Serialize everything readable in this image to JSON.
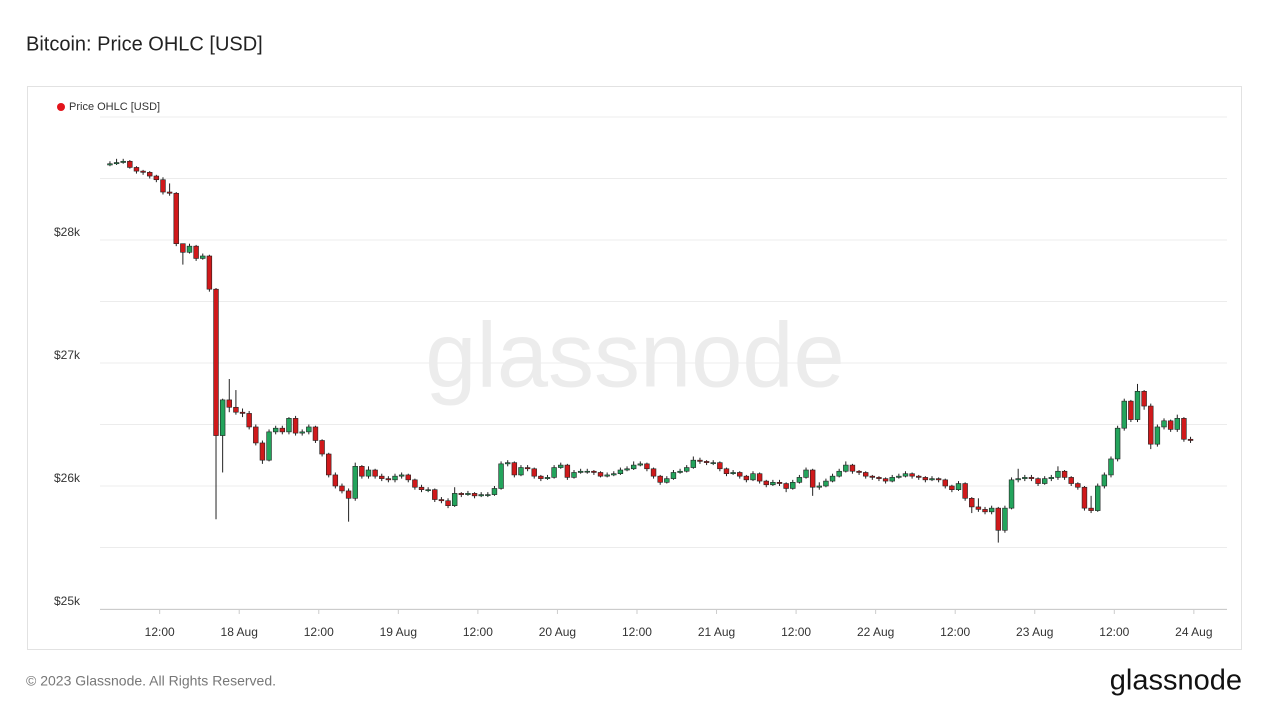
{
  "chart_data": {
    "type": "candlestick",
    "title": "Bitcoin: Price OHLC [USD]",
    "watermark": "glassnode",
    "name": "Price OHLC [USD]",
    "color": "#e3141b",
    "up_color": "#23a45c",
    "down_color": "#d0191b",
    "x": [
      "17 Aug 04:00",
      "17 Aug 05:00",
      "17 Aug 06:00",
      "17 Aug 07:00",
      "17 Aug 08:00",
      "17 Aug 09:00",
      "17 Aug 10:00",
      "17 Aug 11:00",
      "17 Aug 12:00",
      "17 Aug 13:00",
      "17 Aug 14:00",
      "17 Aug 15:00",
      "17 Aug 16:00",
      "17 Aug 17:00",
      "17 Aug 18:00",
      "17 Aug 19:00",
      "17 Aug 20:00",
      "17 Aug 21:00",
      "17 Aug 22:00",
      "17 Aug 23:00",
      "18 Aug 00:00",
      "18 Aug 01:00",
      "18 Aug 02:00",
      "18 Aug 03:00",
      "18 Aug 04:00",
      "18 Aug 05:00",
      "18 Aug 06:00",
      "18 Aug 07:00",
      "18 Aug 08:00",
      "18 Aug 09:00",
      "18 Aug 10:00",
      "18 Aug 11:00",
      "18 Aug 12:00",
      "18 Aug 13:00",
      "18 Aug 14:00",
      "18 Aug 15:00",
      "18 Aug 16:00",
      "18 Aug 17:00",
      "18 Aug 18:00",
      "18 Aug 19:00",
      "18 Aug 20:00",
      "18 Aug 21:00",
      "18 Aug 22:00",
      "18 Aug 23:00",
      "19 Aug 00:00",
      "19 Aug 01:00",
      "19 Aug 02:00",
      "19 Aug 03:00",
      "19 Aug 04:00",
      "19 Aug 05:00",
      "19 Aug 06:00",
      "19 Aug 07:00",
      "19 Aug 08:00",
      "19 Aug 09:00",
      "19 Aug 10:00",
      "19 Aug 11:00",
      "19 Aug 12:00",
      "19 Aug 13:00",
      "19 Aug 14:00",
      "19 Aug 15:00",
      "19 Aug 16:00",
      "19 Aug 17:00",
      "19 Aug 18:00",
      "19 Aug 19:00",
      "19 Aug 20:00",
      "19 Aug 21:00",
      "19 Aug 22:00",
      "19 Aug 23:00",
      "20 Aug 00:00",
      "20 Aug 01:00",
      "20 Aug 02:00",
      "20 Aug 03:00",
      "20 Aug 04:00",
      "20 Aug 05:00",
      "20 Aug 06:00",
      "20 Aug 07:00",
      "20 Aug 08:00",
      "20 Aug 09:00",
      "20 Aug 10:00",
      "20 Aug 11:00",
      "20 Aug 12:00",
      "20 Aug 13:00",
      "20 Aug 14:00",
      "20 Aug 15:00",
      "20 Aug 16:00",
      "20 Aug 17:00",
      "20 Aug 18:00",
      "20 Aug 19:00",
      "20 Aug 20:00",
      "20 Aug 21:00",
      "20 Aug 22:00",
      "20 Aug 23:00",
      "21 Aug 00:00",
      "21 Aug 01:00",
      "21 Aug 02:00",
      "21 Aug 03:00",
      "21 Aug 04:00",
      "21 Aug 05:00",
      "21 Aug 06:00",
      "21 Aug 07:00",
      "21 Aug 08:00",
      "21 Aug 09:00",
      "21 Aug 10:00",
      "21 Aug 11:00",
      "21 Aug 12:00",
      "21 Aug 13:00",
      "21 Aug 14:00",
      "21 Aug 15:00",
      "21 Aug 16:00",
      "21 Aug 17:00",
      "21 Aug 18:00",
      "21 Aug 19:00",
      "21 Aug 20:00",
      "21 Aug 21:00",
      "21 Aug 22:00",
      "21 Aug 23:00",
      "22 Aug 00:00",
      "22 Aug 01:00",
      "22 Aug 02:00",
      "22 Aug 03:00",
      "22 Aug 04:00",
      "22 Aug 05:00",
      "22 Aug 06:00",
      "22 Aug 07:00",
      "22 Aug 08:00",
      "22 Aug 09:00",
      "22 Aug 10:00",
      "22 Aug 11:00",
      "22 Aug 12:00",
      "22 Aug 13:00",
      "22 Aug 14:00",
      "22 Aug 15:00",
      "22 Aug 16:00",
      "22 Aug 17:00",
      "22 Aug 18:00",
      "22 Aug 19:00",
      "22 Aug 20:00",
      "22 Aug 21:00",
      "22 Aug 22:00",
      "22 Aug 23:00",
      "23 Aug 00:00",
      "23 Aug 01:00",
      "23 Aug 02:00",
      "23 Aug 03:00",
      "23 Aug 04:00",
      "23 Aug 05:00",
      "23 Aug 06:00",
      "23 Aug 07:00",
      "23 Aug 08:00",
      "23 Aug 09:00",
      "23 Aug 10:00",
      "23 Aug 11:00",
      "23 Aug 12:00",
      "23 Aug 13:00",
      "23 Aug 14:00",
      "23 Aug 15:00",
      "23 Aug 16:00",
      "23 Aug 17:00",
      "23 Aug 18:00",
      "23 Aug 19:00",
      "23 Aug 20:00",
      "23 Aug 21:00",
      "23 Aug 22:00",
      "23 Aug 23:00"
    ],
    "open": [
      28610,
      28620,
      28630,
      28640,
      28590,
      28560,
      28550,
      28520,
      28490,
      28390,
      28380,
      27970,
      27900,
      27950,
      27850,
      27870,
      27600,
      26410,
      26700,
      26640,
      26600,
      26590,
      26480,
      26350,
      26210,
      26440,
      26470,
      26440,
      26550,
      26430,
      26440,
      26480,
      26370,
      26260,
      26090,
      26000,
      25960,
      25900,
      26160,
      26080,
      26130,
      26080,
      26060,
      26050,
      26080,
      26090,
      26050,
      25990,
      25970,
      25970,
      25890,
      25880,
      25840,
      25940,
      25930,
      25940,
      25920,
      25930,
      25930,
      25980,
      26180,
      26190,
      26090,
      26150,
      26140,
      26080,
      26060,
      26070,
      26150,
      26170,
      26070,
      26110,
      26120,
      26120,
      26110,
      26080,
      26090,
      26100,
      26130,
      26140,
      26170,
      26180,
      26140,
      26080,
      26030,
      26060,
      26110,
      26120,
      26150,
      26210,
      26200,
      26190,
      26190,
      26140,
      26100,
      26110,
      26080,
      26050,
      26100,
      26040,
      26010,
      26030,
      26020,
      25980,
      26030,
      26070,
      26130,
      25990,
      26000,
      26040,
      26080,
      26120,
      26170,
      26120,
      26110,
      26080,
      26070,
      26060,
      26040,
      26070,
      26080,
      26100,
      26080,
      26070,
      26050,
      26060,
      26050,
      26000,
      25970,
      26020,
      25900,
      25830,
      25810,
      25790,
      25820,
      25640,
      25820,
      26050,
      26060,
      26070,
      26060,
      26020,
      26060,
      26070,
      26120,
      26070,
      26020,
      25990,
      25820,
      25800,
      26000,
      26090,
      26220,
      26470,
      26690,
      26540,
      26770,
      26650,
      26340,
      26480,
      26530,
      26460,
      26550,
      26380
    ],
    "high": [
      28640,
      28660,
      28660,
      28650,
      28600,
      28570,
      28560,
      28530,
      28510,
      28460,
      28390,
      27970,
      27970,
      27960,
      27890,
      27880,
      27610,
      26710,
      26870,
      26780,
      26630,
      26610,
      26500,
      26370,
      26460,
      26490,
      26490,
      26560,
      26570,
      26460,
      26500,
      26490,
      26380,
      26270,
      26110,
      26020,
      25980,
      26190,
      26170,
      26160,
      26140,
      26100,
      26080,
      26100,
      26110,
      26100,
      26060,
      26010,
      25990,
      25980,
      25910,
      25900,
      25990,
      25950,
      25960,
      25950,
      25950,
      25950,
      26000,
      26200,
      26210,
      26200,
      26170,
      26170,
      26150,
      26090,
      26090,
      26170,
      26190,
      26180,
      26130,
      26140,
      26140,
      26130,
      26120,
      26110,
      26120,
      26150,
      26160,
      26200,
      26200,
      26190,
      26150,
      26090,
      26080,
      26130,
      26140,
      26170,
      26240,
      26230,
      26210,
      26210,
      26200,
      26150,
      26130,
      26120,
      26090,
      26120,
      26110,
      26050,
      26050,
      26050,
      26030,
      26050,
      26090,
      26150,
      26140,
      26030,
      26060,
      26100,
      26140,
      26200,
      26180,
      26130,
      26120,
      26090,
      26080,
      26070,
      26090,
      26100,
      26120,
      26110,
      26090,
      26080,
      26080,
      26070,
      26060,
      26010,
      26040,
      26030,
      25910,
      25900,
      25830,
      25840,
      25830,
      25840,
      26070,
      26140,
      26090,
      26090,
      26070,
      26080,
      26090,
      26160,
      26130,
      26080,
      26030,
      26000,
      25920,
      26020,
      26110,
      26240,
      26490,
      26710,
      26700,
      26830,
      26780,
      26670,
      26500,
      26550,
      26540,
      26580,
      26560,
      26400
    ],
    "low": [
      28600,
      28610,
      28620,
      28580,
      28540,
      28530,
      28500,
      28470,
      28370,
      28360,
      27950,
      27800,
      27890,
      27830,
      27840,
      27580,
      25730,
      26110,
      26600,
      26580,
      26560,
      26460,
      26330,
      26180,
      26200,
      26420,
      26420,
      26420,
      26410,
      26410,
      26420,
      26350,
      26240,
      26070,
      25980,
      25940,
      25710,
      25880,
      26060,
      26060,
      26060,
      26040,
      26030,
      26030,
      26060,
      26030,
      25970,
      25950,
      25950,
      25870,
      25860,
      25820,
      25830,
      25910,
      25920,
      25900,
      25910,
      25910,
      25920,
      25970,
      26160,
      26070,
      26080,
      26120,
      26060,
      26040,
      26050,
      26060,
      26140,
      26050,
      26060,
      26100,
      26100,
      26090,
      26070,
      26070,
      26080,
      26090,
      26120,
      26130,
      26160,
      26120,
      26060,
      26010,
      26020,
      26050,
      26100,
      26110,
      26140,
      26180,
      26170,
      26170,
      26120,
      26080,
      26090,
      26060,
      26030,
      26040,
      26020,
      25990,
      26000,
      26000,
      25950,
      25970,
      26020,
      26060,
      25920,
      25970,
      25990,
      26030,
      26070,
      26110,
      26100,
      26090,
      26060,
      26050,
      26040,
      26020,
      26030,
      26060,
      26070,
      26060,
      26050,
      26030,
      26040,
      26030,
      25980,
      25950,
      25960,
      25880,
      25780,
      25790,
      25770,
      25770,
      25540,
      25620,
      25810,
      26030,
      26040,
      26040,
      26000,
      26010,
      26040,
      26050,
      26050,
      26000,
      25970,
      25800,
      25780,
      25790,
      25980,
      26070,
      26200,
      26450,
      26520,
      26520,
      26620,
      26300,
      26320,
      26460,
      26440,
      26440,
      26360,
      26350
    ],
    "close": [
      28620,
      28630,
      28640,
      28590,
      28560,
      28550,
      28520,
      28490,
      28390,
      28380,
      27970,
      27900,
      27950,
      27850,
      27870,
      27600,
      26410,
      26700,
      26640,
      26600,
      26590,
      26480,
      26350,
      26210,
      26440,
      26470,
      26440,
      26550,
      26430,
      26440,
      26480,
      26370,
      26260,
      26090,
      26000,
      25960,
      25900,
      26160,
      26080,
      26130,
      26080,
      26060,
      26050,
      26080,
      26090,
      26050,
      25990,
      25970,
      25970,
      25890,
      25880,
      25840,
      25940,
      25930,
      25940,
      25920,
      25930,
      25930,
      25980,
      26180,
      26190,
      26090,
      26150,
      26140,
      26080,
      26060,
      26070,
      26150,
      26170,
      26070,
      26110,
      26120,
      26120,
      26110,
      26080,
      26090,
      26100,
      26130,
      26140,
      26170,
      26180,
      26140,
      26080,
      26030,
      26060,
      26110,
      26120,
      26150,
      26210,
      26200,
      26190,
      26190,
      26140,
      26100,
      26110,
      26080,
      26050,
      26100,
      26040,
      26010,
      26030,
      26020,
      25980,
      26030,
      26070,
      26130,
      25990,
      26000,
      26040,
      26080,
      26120,
      26170,
      26120,
      26110,
      26080,
      26070,
      26060,
      26040,
      26070,
      26080,
      26100,
      26080,
      26070,
      26050,
      26060,
      26050,
      26000,
      25970,
      26020,
      25900,
      25830,
      25810,
      25790,
      25820,
      25640,
      25820,
      26050,
      26060,
      26070,
      26060,
      26020,
      26060,
      26070,
      26120,
      26070,
      26020,
      25990,
      25820,
      25800,
      26000,
      26090,
      26220,
      26470,
      26690,
      26540,
      26770,
      26650,
      26340,
      26480,
      26530,
      26460,
      26550,
      26380,
      26370
    ],
    "xlim": [
      "17 Aug 03:00",
      "24 Aug 05:00"
    ],
    "xticks": [
      {
        "value": "17 Aug 12:00",
        "label": "12:00"
      },
      {
        "value": "18 Aug 00:00",
        "label": "18 Aug"
      },
      {
        "value": "18 Aug 12:00",
        "label": "12:00"
      },
      {
        "value": "19 Aug 00:00",
        "label": "19 Aug"
      },
      {
        "value": "19 Aug 12:00",
        "label": "12:00"
      },
      {
        "value": "20 Aug 00:00",
        "label": "20 Aug"
      },
      {
        "value": "20 Aug 12:00",
        "label": "12:00"
      },
      {
        "value": "21 Aug 00:00",
        "label": "21 Aug"
      },
      {
        "value": "21 Aug 12:00",
        "label": "12:00"
      },
      {
        "value": "22 Aug 00:00",
        "label": "22 Aug"
      },
      {
        "value": "22 Aug 12:00",
        "label": "12:00"
      },
      {
        "value": "23 Aug 00:00",
        "label": "23 Aug"
      },
      {
        "value": "23 Aug 12:00",
        "label": "12:00"
      },
      {
        "value": "24 Aug 00:00",
        "label": "24 Aug"
      }
    ],
    "ylim": [
      25000,
      29000
    ],
    "yticks": [
      {
        "value": 25000,
        "label": "$25k"
      },
      {
        "value": 26000,
        "label": "$26k"
      },
      {
        "value": 27000,
        "label": "$27k"
      },
      {
        "value": 28000,
        "label": "$28k"
      }
    ],
    "ygrid": [
      25000,
      25500,
      26000,
      26500,
      27000,
      27500,
      28000,
      28500,
      29000
    ],
    "grid": true
  },
  "footer": {
    "copyright": "© 2023 Glassnode. All Rights Reserved.",
    "brand": "glassnode"
  }
}
